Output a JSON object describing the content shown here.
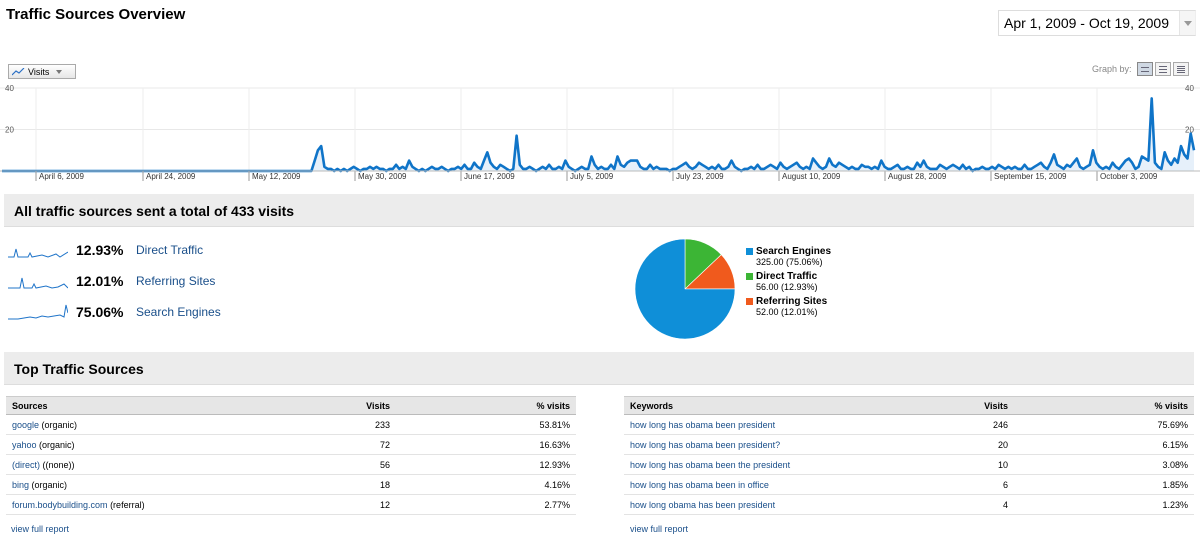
{
  "header": {
    "title": "Traffic Sources Overview",
    "date_range": "Apr 1, 2009 - Oct 19, 2009"
  },
  "graph": {
    "metric_label": "Visits",
    "graph_by_label": "Graph by:",
    "views": [
      "day-view-icon",
      "week-view-icon",
      "month-view-icon"
    ],
    "active_view": 0
  },
  "chart_data": {
    "type": "area",
    "ylim": [
      0,
      40
    ],
    "y_ticks": [
      "40",
      "20"
    ],
    "x_labels": [
      "April 6, 2009",
      "April 24, 2009",
      "May 12, 2009",
      "May 30, 2009",
      "June 17, 2009",
      "July 5, 2009",
      "July 23, 2009",
      "August 10, 2009",
      "August 28, 2009",
      "September 15, 2009",
      "October 3, 2009"
    ],
    "color": "#0f74c8",
    "values": [
      0,
      0,
      0,
      0,
      0,
      0,
      0,
      0,
      0,
      0,
      0,
      0,
      0,
      0,
      0,
      0,
      0,
      0,
      0,
      0,
      0,
      0,
      0,
      0,
      0,
      0,
      0,
      0,
      0,
      0,
      0,
      0,
      0,
      0,
      0,
      0,
      0,
      0,
      0,
      0,
      0,
      0,
      0,
      0,
      0,
      0,
      0,
      0,
      0,
      0,
      0,
      0,
      0,
      0,
      0,
      0,
      0,
      0,
      0,
      0,
      0,
      0,
      0,
      0,
      0,
      0,
      0,
      0,
      0,
      0,
      0,
      0,
      0,
      0,
      0,
      0,
      0,
      0,
      0,
      0,
      0,
      0,
      0,
      0,
      0,
      0,
      0,
      0,
      0,
      0,
      0,
      0,
      0,
      0,
      0,
      0,
      5,
      10,
      12,
      2,
      1,
      1,
      0,
      1,
      0,
      1,
      0,
      1,
      2,
      1,
      0,
      1,
      1,
      2,
      1,
      2,
      1,
      1,
      0,
      1,
      1,
      3,
      1,
      2,
      1,
      5,
      2,
      1,
      0,
      1,
      0,
      1,
      2,
      1,
      1,
      2,
      1,
      0,
      1,
      1,
      2,
      1,
      3,
      1,
      1,
      4,
      2,
      1,
      5,
      9,
      4,
      2,
      1,
      3,
      2,
      1,
      0,
      1,
      17,
      3,
      1,
      1,
      2,
      1,
      0,
      1,
      2,
      1,
      3,
      1,
      1,
      2,
      1,
      5,
      2,
      1,
      0,
      1,
      2,
      1,
      1,
      7,
      3,
      1,
      2,
      1,
      1,
      3,
      1,
      7,
      3,
      2,
      4,
      5,
      5,
      5,
      2,
      1,
      1,
      3,
      1,
      2,
      1,
      1,
      1,
      0,
      1,
      1,
      2,
      3,
      4,
      2,
      1,
      2,
      4,
      3,
      2,
      1,
      2,
      1,
      3,
      1,
      1,
      2,
      5,
      2,
      1,
      0,
      1,
      1,
      2,
      1,
      3,
      1,
      1,
      2,
      3,
      2,
      1,
      4,
      2,
      1,
      2,
      3,
      4,
      2,
      1,
      2,
      1,
      6,
      4,
      2,
      1,
      2,
      6,
      3,
      2,
      4,
      3,
      2,
      1,
      2,
      1,
      1,
      3,
      2,
      2,
      1,
      2,
      1,
      5,
      2,
      1,
      1,
      2,
      3,
      1,
      1,
      2,
      1,
      1,
      4,
      2,
      5,
      2,
      1,
      1,
      1,
      3,
      2,
      1,
      2,
      3,
      2,
      1,
      3,
      1,
      2,
      0,
      1,
      1,
      2,
      1,
      1,
      2,
      1,
      3,
      2,
      1,
      2,
      1,
      2,
      1,
      1,
      3,
      1,
      1,
      2,
      3,
      4,
      2,
      1,
      4,
      8,
      3,
      2,
      1,
      3,
      2,
      4,
      6,
      2,
      1,
      2,
      3,
      10,
      4,
      2,
      1,
      2,
      1,
      4,
      2,
      1,
      3,
      5,
      6,
      4,
      1,
      2,
      7,
      6,
      5,
      35,
      4,
      2,
      1,
      9,
      5,
      3,
      6,
      4,
      12,
      8,
      6,
      18,
      10
    ]
  },
  "summary": {
    "title": "All traffic sources sent a total of 433 visits",
    "items": [
      {
        "pct": "12.93%",
        "label": "Direct Traffic"
      },
      {
        "pct": "12.01%",
        "label": "Referring Sites"
      },
      {
        "pct": "75.06%",
        "label": "Search Engines"
      }
    ]
  },
  "pie": {
    "slices": [
      {
        "name": "Search Engines",
        "value": "325.00 (75.06%)",
        "share": 75.06,
        "color": "#0f8fd8"
      },
      {
        "name": "Direct Traffic",
        "value": "56.00 (12.93%)",
        "share": 12.93,
        "color": "#3cb535"
      },
      {
        "name": "Referring Sites",
        "value": "52.00 (12.01%)",
        "share": 12.01,
        "color": "#f05a1d"
      }
    ]
  },
  "top": {
    "title": "Top Traffic Sources",
    "sources": {
      "headers": [
        "Sources",
        "Visits",
        "% visits"
      ],
      "rows": [
        {
          "link": "google",
          "suffix": " (organic)",
          "visits": "233",
          "pct": "53.81%"
        },
        {
          "link": "yahoo",
          "suffix": " (organic)",
          "visits": "72",
          "pct": "16.63%"
        },
        {
          "link": "(direct)",
          "suffix": " ((none))",
          "visits": "56",
          "pct": "12.93%"
        },
        {
          "link": "bing",
          "suffix": " (organic)",
          "visits": "18",
          "pct": "4.16%"
        },
        {
          "link": "forum.bodybuilding.com",
          "suffix": " (referral)",
          "visits": "12",
          "pct": "2.77%"
        }
      ],
      "view_full": "view full report"
    },
    "keywords": {
      "headers": [
        "Keywords",
        "Visits",
        "% visits"
      ],
      "rows": [
        {
          "link": "how long has obama been president",
          "suffix": "",
          "visits": "246",
          "pct": "75.69%"
        },
        {
          "link": "how long has obama been president?",
          "suffix": "",
          "visits": "20",
          "pct": "6.15%"
        },
        {
          "link": "how long has obama been the president",
          "suffix": "",
          "visits": "10",
          "pct": "3.08%"
        },
        {
          "link": "how long has obama been in office",
          "suffix": "",
          "visits": "6",
          "pct": "1.85%"
        },
        {
          "link": "how long obama has been president",
          "suffix": "",
          "visits": "4",
          "pct": "1.23%"
        }
      ],
      "view_full": "view full report"
    }
  }
}
